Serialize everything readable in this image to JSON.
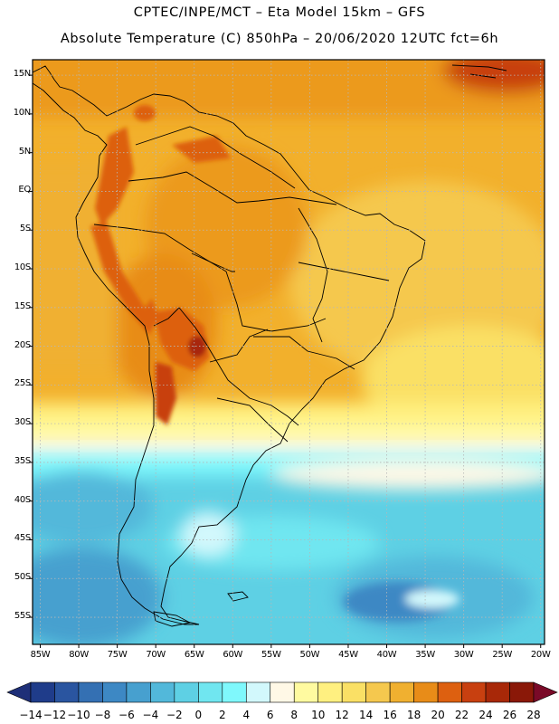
{
  "header": {
    "line1": "CPTEC/INPE/MCT  –   Eta Model 15km  –  GFS",
    "line2": "Absolute Temperature (C) 850hPa  –  20/06/2020 12UTC fct=6h"
  },
  "map": {
    "lon_range": [
      -86,
      -19.5
    ],
    "lat_range": [
      -58.5,
      17
    ],
    "lat_labels": [
      "15N",
      "10N",
      "5N",
      "EQ",
      "5S",
      "10S",
      "15S",
      "20S",
      "25S",
      "30S",
      "35S",
      "40S",
      "45S",
      "50S",
      "55S"
    ],
    "lat_values": [
      15,
      10,
      5,
      0,
      -5,
      -10,
      -15,
      -20,
      -25,
      -30,
      -35,
      -40,
      -45,
      -50,
      -55
    ],
    "lon_labels": [
      "85W",
      "80W",
      "75W",
      "70W",
      "65W",
      "60W",
      "55W",
      "50W",
      "45W",
      "40W",
      "35W",
      "30W",
      "25W",
      "20W"
    ],
    "lon_values": [
      -85,
      -80,
      -75,
      -70,
      -65,
      -60,
      -55,
      -50,
      -45,
      -40,
      -35,
      -30,
      -25,
      -20
    ],
    "grid": true
  },
  "colorbar": {
    "labels": [
      "-14",
      "-12",
      "-10",
      "-8",
      "-6",
      "-4",
      "-2",
      "0",
      "2",
      "4",
      "6",
      "8",
      "10",
      "12",
      "14",
      "16",
      "18",
      "20",
      "22",
      "24",
      "26",
      "28"
    ],
    "low_arrow_color": "#1e2f78",
    "high_arrow_color": "#7a0a28",
    "colors": [
      "#1f3c8a",
      "#2a55a0",
      "#3470b3",
      "#3d88c4",
      "#47a0cf",
      "#52b8da",
      "#5ed0e4",
      "#70e6f0",
      "#7ff8fc",
      "#d2f8fc",
      "#fff8e6",
      "#fffaa0",
      "#fff080",
      "#fae065",
      "#f5c84e",
      "#f0b030",
      "#e88c18",
      "#dd6010",
      "#c84010",
      "#a82808",
      "#8a1808"
    ],
    "unit": "C"
  }
}
